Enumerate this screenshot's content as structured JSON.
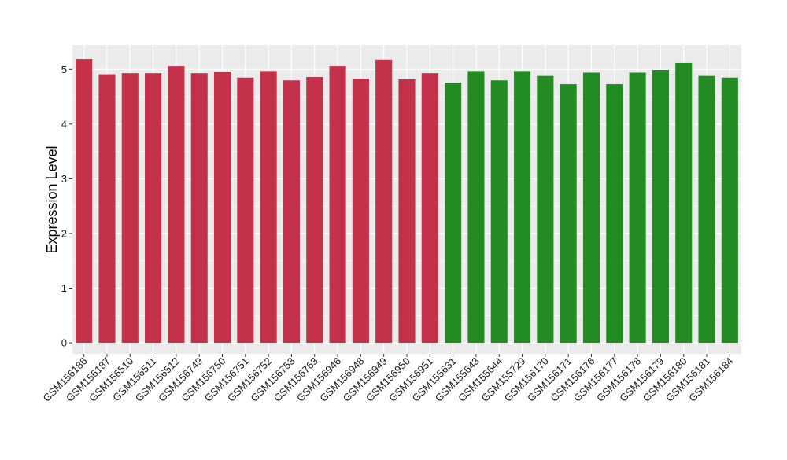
{
  "chart_data": {
    "type": "bar",
    "title": "",
    "xlabel": "",
    "ylabel": "Expression Level",
    "ylim": [
      -0.2,
      5.45
    ],
    "yticks": [
      0,
      1,
      2,
      3,
      4,
      5
    ],
    "ytick_labels": [
      "0",
      "1",
      "2",
      "3",
      "4",
      "5"
    ],
    "grid": true,
    "legend": "none",
    "panel_background": "#EBEBEB",
    "grid_color": "#FFFFFF",
    "categories": [
      "GSM156186",
      "GSM156187",
      "GSM156510",
      "GSM156511",
      "GSM156512",
      "GSM156749",
      "GSM156750",
      "GSM156751",
      "GSM156752",
      "GSM156753",
      "GSM156763",
      "GSM156946",
      "GSM156948",
      "GSM156949",
      "GSM156950",
      "GSM156951",
      "GSM155631",
      "GSM155643",
      "GSM155644",
      "GSM155729",
      "GSM156170",
      "GSM156171",
      "GSM156176",
      "GSM156177",
      "GSM156178",
      "GSM156179",
      "GSM156180",
      "GSM156181",
      "GSM156184"
    ],
    "values": [
      5.19,
      4.91,
      4.93,
      4.93,
      5.06,
      4.93,
      4.96,
      4.85,
      4.97,
      4.8,
      4.86,
      5.06,
      4.83,
      5.18,
      4.82,
      4.93,
      4.76,
      4.97,
      4.8,
      4.97,
      4.88,
      4.73,
      4.94,
      4.73,
      4.94,
      4.99,
      5.12,
      4.88,
      4.85
    ],
    "colors": [
      "#C4314B",
      "#C4314B",
      "#C4314B",
      "#C4314B",
      "#C4314B",
      "#C4314B",
      "#C4314B",
      "#C4314B",
      "#C4314B",
      "#C4314B",
      "#C4314B",
      "#C4314B",
      "#C4314B",
      "#C4314B",
      "#C4314B",
      "#C4314B",
      "#228B22",
      "#228B22",
      "#228B22",
      "#228B22",
      "#228B22",
      "#228B22",
      "#228B22",
      "#228B22",
      "#228B22",
      "#228B22",
      "#228B22",
      "#228B22",
      "#228B22"
    ]
  }
}
